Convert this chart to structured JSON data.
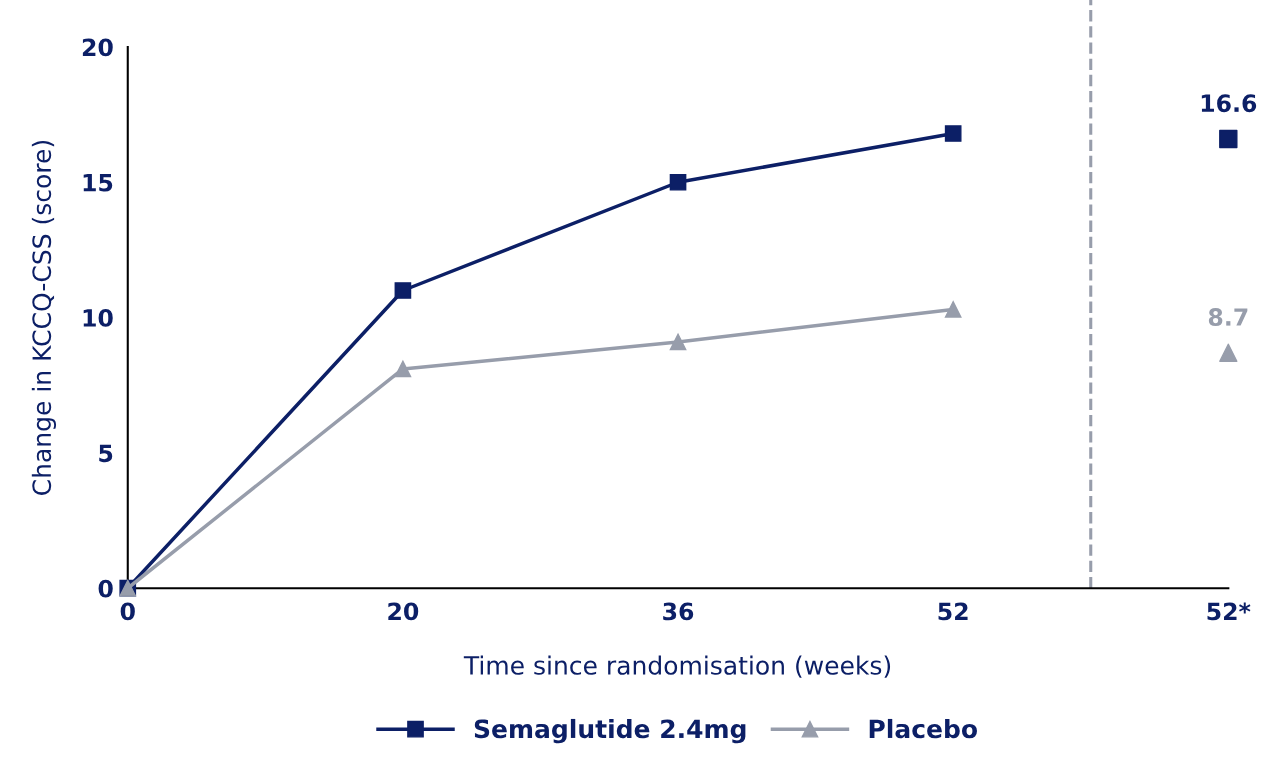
{
  "chart_data": {
    "type": "line",
    "xlabel": "Time since randomisation (weeks)",
    "ylabel": "Change in KCCQ-CSS (score)",
    "categories": [
      "0",
      "20",
      "36",
      "52",
      "52*"
    ],
    "ylim": [
      0,
      20
    ],
    "yticks": [
      0,
      5,
      10,
      15,
      20
    ],
    "grid": false,
    "legend": "bottom",
    "line_style": "solid",
    "series": [
      {
        "name": "Semaglutide 2.4mg",
        "color": "#0c1f66",
        "marker": "square",
        "values": [
          0,
          11,
          15,
          16.8,
          null
        ]
      },
      {
        "name": "Placebo",
        "color": "#979dab",
        "marker": "triangle",
        "values": [
          0,
          8.1,
          9.1,
          10.3,
          null
        ]
      },
      {
        "type": "scatter",
        "color": "#0c1f66",
        "marker": "square",
        "values": [
          null,
          null,
          null,
          null,
          16.6
        ],
        "value_labels": [
          null,
          null,
          null,
          null,
          "16.6"
        ]
      },
      {
        "type": "scatter",
        "color": "#979dab",
        "marker": "triangle",
        "values": [
          null,
          null,
          null,
          null,
          8.7
        ],
        "value_labels": [
          null,
          null,
          null,
          null,
          "8.7"
        ]
      }
    ]
  }
}
